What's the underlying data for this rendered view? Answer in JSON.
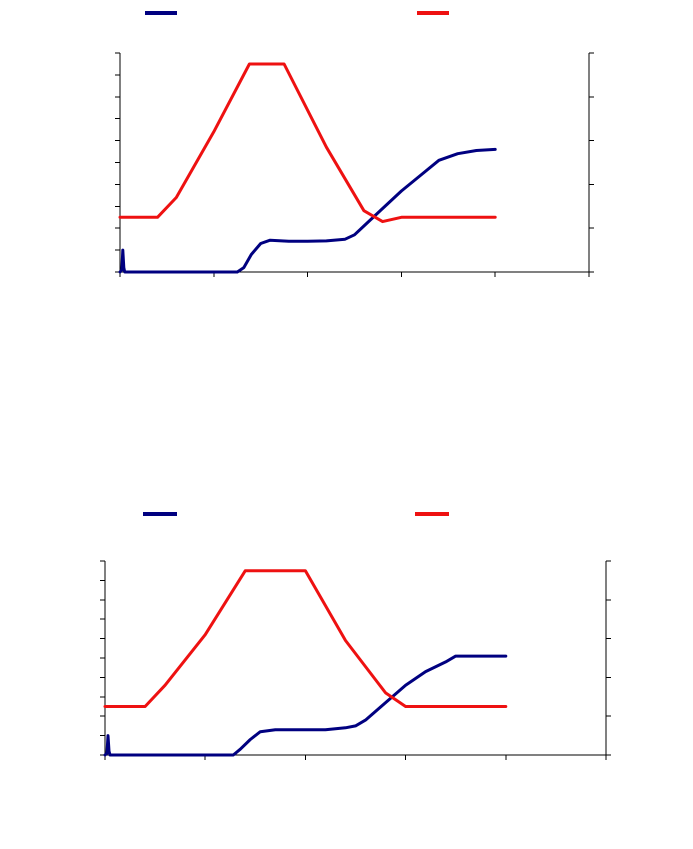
{
  "colors": {
    "series_blue": "#000080",
    "series_red": "#ee1111",
    "axis": "#000000",
    "background": "#ffffff"
  },
  "chart_data": [
    {
      "type": "line",
      "title": "",
      "xlabel": "",
      "ylabel_left": "",
      "ylabel_right": "",
      "xlim": [
        0,
        50
      ],
      "x_tick_count": 6,
      "ylim_left": [
        0,
        100
      ],
      "y_left_tick_count": 11,
      "ylim_right": [
        0,
        100
      ],
      "y_right_tick_count": 6,
      "grid": false,
      "legend": "top",
      "series": [
        {
          "axis": "left",
          "color_key": "series_blue",
          "x": [
            0,
            0.2,
            0.3,
            0.4,
            0.5,
            0.7,
            1,
            5,
            10,
            12.5,
            13.2,
            14,
            15,
            16,
            18,
            20,
            22,
            24,
            25,
            26,
            28,
            30,
            32,
            34,
            36,
            38,
            40
          ],
          "y": [
            0,
            1,
            10,
            2,
            0,
            0,
            0,
            0,
            0,
            0,
            2,
            8,
            13,
            14.5,
            14,
            14,
            14.2,
            15,
            17,
            21,
            29,
            37,
            44,
            51,
            54,
            55.5,
            56
          ]
        },
        {
          "axis": "right",
          "color_key": "series_red",
          "x": [
            0,
            2,
            4,
            6,
            10,
            13.8,
            17.5,
            22,
            26,
            28,
            30,
            32,
            36,
            40
          ],
          "y": [
            25,
            25,
            25,
            34,
            64,
            95,
            95,
            57,
            28,
            23,
            25,
            25,
            25,
            25
          ]
        }
      ]
    },
    {
      "type": "line",
      "title": "",
      "xlabel": "",
      "ylabel_left": "",
      "ylabel_right": "",
      "xlim": [
        0,
        50
      ],
      "x_tick_count": 6,
      "ylim_left": [
        0,
        100
      ],
      "y_left_tick_count": 11,
      "ylim_right": [
        0,
        100
      ],
      "y_right_tick_count": 6,
      "grid": false,
      "legend": "top",
      "series": [
        {
          "axis": "left",
          "color_key": "series_blue",
          "x": [
            0,
            0.2,
            0.3,
            0.4,
            0.5,
            0.7,
            1,
            5,
            10,
            12.8,
            13.5,
            14.5,
            15.5,
            17,
            20,
            22,
            24,
            25,
            26,
            28,
            30,
            32,
            34,
            35,
            36,
            40
          ],
          "y": [
            0,
            1,
            10,
            2,
            0,
            0,
            0,
            0,
            0,
            0,
            3,
            8,
            12,
            13,
            13,
            13,
            14,
            15,
            18,
            27,
            36,
            43,
            48,
            51,
            51,
            51
          ]
        },
        {
          "axis": "right",
          "color_key": "series_red",
          "x": [
            0,
            2,
            4,
            6,
            10,
            14,
            20,
            24,
            28,
            30,
            32,
            36,
            40
          ],
          "y": [
            25,
            25,
            25,
            36,
            62,
            95,
            95,
            59,
            32,
            25,
            25,
            25,
            25
          ]
        }
      ]
    }
  ]
}
